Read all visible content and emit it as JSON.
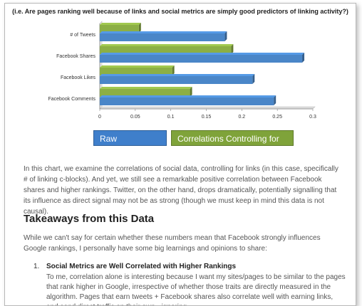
{
  "chart_data": {
    "type": "bar",
    "orientation": "horizontal",
    "title": "(i.e. Are pages ranking well because of links and social metrics are simply good predictors of linking activity?)",
    "categories": [
      "# of Tweets",
      "Facebook Shares",
      "Facebook Likes",
      "Facebook Comments"
    ],
    "series": [
      {
        "name": "Correlations Controlling for Links",
        "color": "#8caf45",
        "values": [
          0.055,
          0.185,
          0.102,
          0.127
        ]
      },
      {
        "name": "Raw Correlations",
        "color": "#4a86c8",
        "values": [
          0.176,
          0.285,
          0.215,
          0.245
        ]
      }
    ],
    "xlim": [
      0,
      0.3
    ],
    "xticks": [
      "0",
      "0.05",
      "0.1",
      "0.15",
      "0.2",
      "0.25",
      "0.3"
    ],
    "grid": false,
    "legend_placement": "bottom"
  },
  "legend": {
    "raw": "Raw Correlations",
    "controlling": "Correlations Controlling for Links"
  },
  "article": {
    "paragraph1": "In this chart, we examine the correlations of social data, controlling for links (in this case, specifically # of linking c-blocks). And yet, we still see a remarkable positive correlation between Facebook shares and higher rankings. Twitter, on the other hand, drops dramatically, potentially signalling that its influence as direct signal may not be as strong (though we must keep in mind this data is not causal).",
    "heading": "Takeaways from this Data",
    "paragraph2": "While we can't say for certain whether these numbers mean that Facebook strongly influences Google rankings, I personally have some big learnings and opinions to share:",
    "list_item_number": "1.",
    "list_item_title": "Social Metrics are Well Correlated with Higher Rankings",
    "list_item_body": "To me, correlation alone is interesting because I want my sites/pages to be similar to the pages that rank higher in Google, irrespective of whether those traits are directly measured in the algorithm. Pages that earn tweets + Facebook shares also correlate well with earning links, and send direct traffic on their own - ignoring"
  }
}
